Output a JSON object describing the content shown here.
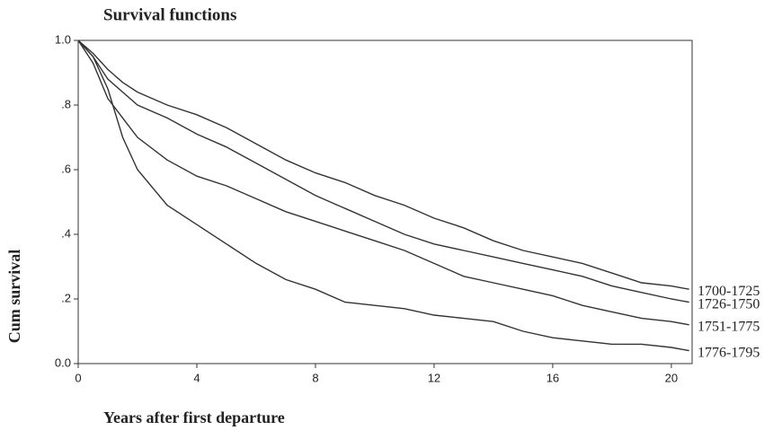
{
  "chart_data": {
    "type": "line",
    "title": "Survival functions",
    "x_label": "Years after first departure",
    "y_label": "Cum survival",
    "x": [
      0,
      0.5,
      1,
      1.5,
      2,
      3,
      4,
      5,
      6,
      7,
      8,
      9,
      10,
      11,
      12,
      13,
      14,
      15,
      16,
      17,
      18,
      19,
      20,
      20.6
    ],
    "series": [
      {
        "name": "1700-1725",
        "color": "#333333",
        "values": [
          1.0,
          0.96,
          0.91,
          0.87,
          0.84,
          0.8,
          0.77,
          0.73,
          0.68,
          0.63,
          0.59,
          0.56,
          0.52,
          0.49,
          0.45,
          0.42,
          0.38,
          0.35,
          0.33,
          0.31,
          0.28,
          0.25,
          0.24,
          0.23
        ]
      },
      {
        "name": "1726-1750",
        "color": "#333333",
        "values": [
          1.0,
          0.95,
          0.88,
          0.84,
          0.8,
          0.76,
          0.71,
          0.67,
          0.62,
          0.57,
          0.52,
          0.48,
          0.44,
          0.4,
          0.37,
          0.35,
          0.33,
          0.31,
          0.29,
          0.27,
          0.24,
          0.22,
          0.2,
          0.19
        ]
      },
      {
        "name": "1751-1775",
        "color": "#333333",
        "values": [
          1.0,
          0.93,
          0.82,
          0.76,
          0.7,
          0.63,
          0.58,
          0.55,
          0.51,
          0.47,
          0.44,
          0.41,
          0.38,
          0.35,
          0.31,
          0.27,
          0.25,
          0.23,
          0.21,
          0.18,
          0.16,
          0.14,
          0.13,
          0.12
        ]
      },
      {
        "name": "1776-1795",
        "color": "#333333",
        "values": [
          1.0,
          0.95,
          0.85,
          0.7,
          0.6,
          0.49,
          0.43,
          0.37,
          0.31,
          0.26,
          0.23,
          0.19,
          0.18,
          0.17,
          0.15,
          0.14,
          0.13,
          0.1,
          0.08,
          0.07,
          0.06,
          0.06,
          0.05,
          0.04
        ]
      }
    ],
    "xlim": [
      0,
      20.7
    ],
    "ylim": [
      0,
      1.0
    ],
    "xticks": [
      0,
      4,
      8,
      12,
      16,
      20
    ],
    "yticks": [
      {
        "value": 0,
        "label": "0.0"
      },
      {
        "value": 0.2,
        "label": ".2"
      },
      {
        "value": 0.4,
        "label": ".4"
      },
      {
        "value": 0.6,
        "label": ".6"
      },
      {
        "value": 0.8,
        "label": ".8"
      },
      {
        "value": 1.0,
        "label": "1.0"
      }
    ],
    "grid": false
  }
}
